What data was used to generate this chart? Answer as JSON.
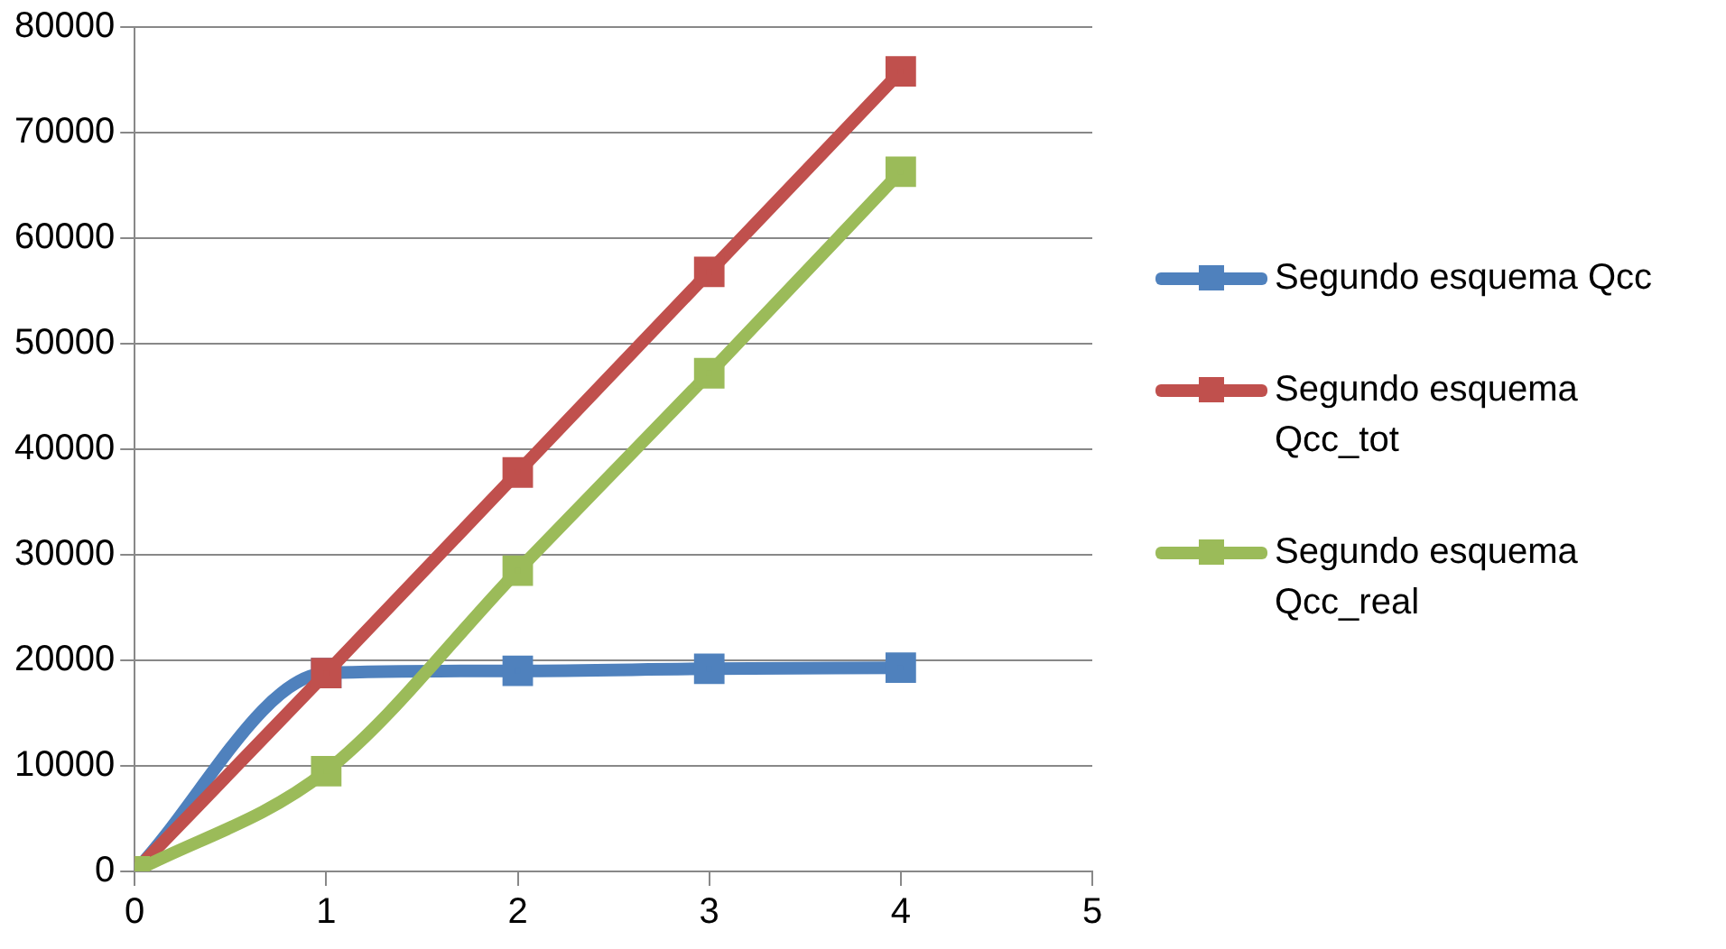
{
  "chart_data": {
    "type": "line",
    "x": [
      0,
      1,
      2,
      3,
      4
    ],
    "xlim": [
      0,
      5
    ],
    "xticks": [
      0,
      1,
      2,
      3,
      4,
      5
    ],
    "ylim": [
      0,
      80000
    ],
    "yticks": [
      0,
      10000,
      20000,
      30000,
      40000,
      50000,
      60000,
      70000,
      80000
    ],
    "grid": "y",
    "legend": "right",
    "marker": "square",
    "line_style": "solid",
    "series": [
      {
        "name": "Segundo esquema Qcc",
        "color": "#4f81bd",
        "values": [
          0,
          18800,
          19000,
          19200,
          19300
        ]
      },
      {
        "name": "Segundo esquema Qcc_tot",
        "color": "#c0504d",
        "values": [
          0,
          18800,
          37800,
          56800,
          75800
        ]
      },
      {
        "name": "Segundo esquema Qcc_real",
        "color": "#9bbb59",
        "values": [
          0,
          9500,
          28500,
          47200,
          66300
        ]
      }
    ]
  }
}
